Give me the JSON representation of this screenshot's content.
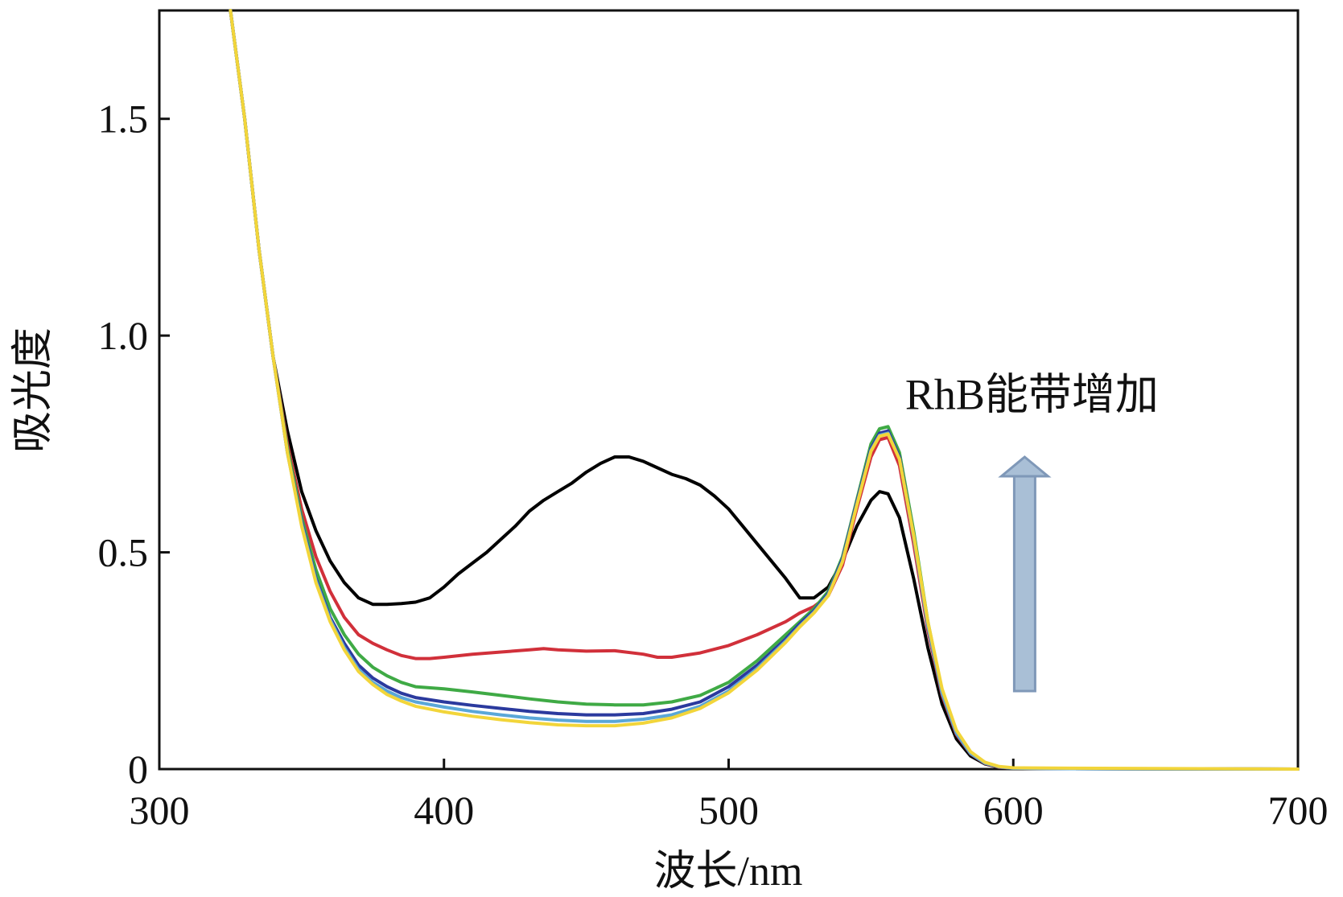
{
  "chart_data": {
    "type": "line",
    "title": "",
    "xlabel": "波长/nm",
    "ylabel": "吸光度",
    "xlim": [
      300,
      700
    ],
    "ylim": [
      0,
      1.75
    ],
    "xticks": [
      300,
      400,
      500,
      600,
      700
    ],
    "xtick_labels": [
      "300",
      "400",
      "500",
      "600",
      "700"
    ],
    "yticks": [
      0,
      0.5,
      1.0,
      1.5
    ],
    "ytick_labels": [
      "0",
      "0.5",
      "1.0",
      "1.5"
    ],
    "grid": false,
    "legend": "none",
    "annotation": {
      "text": "RhB能带增加",
      "arrow_direction": "up",
      "arrow_x": 604,
      "arrow_y_from": 0.18,
      "arrow_y_to": 0.72,
      "text_x": 562,
      "text_y": 0.83
    },
    "series": [
      {
        "color": "#000000",
        "points": [
          [
            325,
            1.75
          ],
          [
            330,
            1.5
          ],
          [
            335,
            1.2
          ],
          [
            340,
            0.95
          ],
          [
            345,
            0.78
          ],
          [
            350,
            0.64
          ],
          [
            355,
            0.55
          ],
          [
            360,
            0.48
          ],
          [
            365,
            0.43
          ],
          [
            370,
            0.395
          ],
          [
            375,
            0.38
          ],
          [
            380,
            0.38
          ],
          [
            385,
            0.382
          ],
          [
            390,
            0.385
          ],
          [
            395,
            0.395
          ],
          [
            400,
            0.42
          ],
          [
            405,
            0.45
          ],
          [
            410,
            0.475
          ],
          [
            415,
            0.5
          ],
          [
            420,
            0.53
          ],
          [
            425,
            0.56
          ],
          [
            430,
            0.595
          ],
          [
            435,
            0.62
          ],
          [
            440,
            0.64
          ],
          [
            445,
            0.66
          ],
          [
            450,
            0.685
          ],
          [
            455,
            0.705
          ],
          [
            460,
            0.72
          ],
          [
            465,
            0.72
          ],
          [
            470,
            0.71
          ],
          [
            475,
            0.695
          ],
          [
            480,
            0.68
          ],
          [
            485,
            0.67
          ],
          [
            490,
            0.655
          ],
          [
            495,
            0.63
          ],
          [
            500,
            0.6
          ],
          [
            505,
            0.56
          ],
          [
            510,
            0.52
          ],
          [
            515,
            0.48
          ],
          [
            520,
            0.44
          ],
          [
            525,
            0.395
          ],
          [
            530,
            0.395
          ],
          [
            535,
            0.42
          ],
          [
            540,
            0.48
          ],
          [
            545,
            0.56
          ],
          [
            550,
            0.62
          ],
          [
            553,
            0.64
          ],
          [
            556,
            0.635
          ],
          [
            560,
            0.58
          ],
          [
            565,
            0.44
          ],
          [
            570,
            0.28
          ],
          [
            575,
            0.15
          ],
          [
            580,
            0.07
          ],
          [
            585,
            0.03
          ],
          [
            590,
            0.012
          ],
          [
            595,
            0.004
          ],
          [
            600,
            0.002
          ],
          [
            620,
            0.001
          ],
          [
            700,
            0.0
          ]
        ]
      },
      {
        "color": "#d1303a",
        "points": [
          [
            325,
            1.75
          ],
          [
            330,
            1.5
          ],
          [
            335,
            1.2
          ],
          [
            340,
            0.95
          ],
          [
            345,
            0.75
          ],
          [
            350,
            0.6
          ],
          [
            355,
            0.49
          ],
          [
            360,
            0.41
          ],
          [
            365,
            0.35
          ],
          [
            370,
            0.31
          ],
          [
            375,
            0.29
          ],
          [
            380,
            0.275
          ],
          [
            385,
            0.262
          ],
          [
            390,
            0.255
          ],
          [
            395,
            0.255
          ],
          [
            400,
            0.258
          ],
          [
            410,
            0.265
          ],
          [
            420,
            0.27
          ],
          [
            430,
            0.275
          ],
          [
            435,
            0.278
          ],
          [
            440,
            0.275
          ],
          [
            450,
            0.272
          ],
          [
            460,
            0.273
          ],
          [
            470,
            0.265
          ],
          [
            475,
            0.258
          ],
          [
            480,
            0.258
          ],
          [
            490,
            0.268
          ],
          [
            500,
            0.285
          ],
          [
            510,
            0.31
          ],
          [
            520,
            0.34
          ],
          [
            525,
            0.36
          ],
          [
            530,
            0.375
          ],
          [
            535,
            0.4
          ],
          [
            540,
            0.47
          ],
          [
            545,
            0.6
          ],
          [
            550,
            0.72
          ],
          [
            553,
            0.76
          ],
          [
            556,
            0.765
          ],
          [
            560,
            0.7
          ],
          [
            565,
            0.52
          ],
          [
            570,
            0.32
          ],
          [
            575,
            0.17
          ],
          [
            580,
            0.08
          ],
          [
            585,
            0.035
          ],
          [
            590,
            0.013
          ],
          [
            595,
            0.004
          ],
          [
            600,
            0.002
          ],
          [
            620,
            0.001
          ],
          [
            700,
            0.0
          ]
        ]
      },
      {
        "color": "#3faa45",
        "points": [
          [
            325,
            1.75
          ],
          [
            330,
            1.5
          ],
          [
            335,
            1.2
          ],
          [
            340,
            0.95
          ],
          [
            345,
            0.74
          ],
          [
            350,
            0.58
          ],
          [
            355,
            0.46
          ],
          [
            360,
            0.37
          ],
          [
            365,
            0.31
          ],
          [
            370,
            0.265
          ],
          [
            375,
            0.235
          ],
          [
            380,
            0.215
          ],
          [
            385,
            0.2
          ],
          [
            390,
            0.19
          ],
          [
            400,
            0.185
          ],
          [
            410,
            0.178
          ],
          [
            420,
            0.17
          ],
          [
            430,
            0.162
          ],
          [
            440,
            0.155
          ],
          [
            450,
            0.15
          ],
          [
            460,
            0.148
          ],
          [
            470,
            0.148
          ],
          [
            480,
            0.155
          ],
          [
            490,
            0.17
          ],
          [
            500,
            0.2
          ],
          [
            510,
            0.25
          ],
          [
            520,
            0.31
          ],
          [
            525,
            0.34
          ],
          [
            530,
            0.37
          ],
          [
            535,
            0.41
          ],
          [
            540,
            0.49
          ],
          [
            545,
            0.62
          ],
          [
            550,
            0.75
          ],
          [
            553,
            0.785
          ],
          [
            556,
            0.79
          ],
          [
            560,
            0.73
          ],
          [
            565,
            0.55
          ],
          [
            570,
            0.34
          ],
          [
            575,
            0.18
          ],
          [
            580,
            0.085
          ],
          [
            585,
            0.037
          ],
          [
            590,
            0.014
          ],
          [
            595,
            0.005
          ],
          [
            600,
            0.002
          ],
          [
            620,
            0.001
          ],
          [
            700,
            0.0
          ]
        ]
      },
      {
        "color": "#2b3a9e",
        "points": [
          [
            325,
            1.75
          ],
          [
            330,
            1.5
          ],
          [
            335,
            1.2
          ],
          [
            340,
            0.95
          ],
          [
            345,
            0.73
          ],
          [
            350,
            0.57
          ],
          [
            355,
            0.44
          ],
          [
            360,
            0.35
          ],
          [
            365,
            0.29
          ],
          [
            370,
            0.24
          ],
          [
            375,
            0.21
          ],
          [
            380,
            0.19
          ],
          [
            385,
            0.175
          ],
          [
            390,
            0.165
          ],
          [
            400,
            0.155
          ],
          [
            410,
            0.147
          ],
          [
            420,
            0.14
          ],
          [
            430,
            0.133
          ],
          [
            440,
            0.128
          ],
          [
            450,
            0.125
          ],
          [
            460,
            0.125
          ],
          [
            470,
            0.128
          ],
          [
            480,
            0.138
          ],
          [
            490,
            0.155
          ],
          [
            500,
            0.19
          ],
          [
            510,
            0.24
          ],
          [
            520,
            0.3
          ],
          [
            525,
            0.335
          ],
          [
            530,
            0.365
          ],
          [
            535,
            0.405
          ],
          [
            540,
            0.485
          ],
          [
            545,
            0.615
          ],
          [
            550,
            0.74
          ],
          [
            553,
            0.775
          ],
          [
            556,
            0.78
          ],
          [
            560,
            0.72
          ],
          [
            565,
            0.54
          ],
          [
            570,
            0.33
          ],
          [
            575,
            0.175
          ],
          [
            580,
            0.083
          ],
          [
            585,
            0.036
          ],
          [
            590,
            0.014
          ],
          [
            595,
            0.005
          ],
          [
            600,
            0.002
          ],
          [
            620,
            0.001
          ],
          [
            700,
            0.0
          ]
        ]
      },
      {
        "color": "#5aa7d8",
        "points": [
          [
            325,
            1.75
          ],
          [
            330,
            1.5
          ],
          [
            335,
            1.2
          ],
          [
            340,
            0.95
          ],
          [
            345,
            0.73
          ],
          [
            350,
            0.565
          ],
          [
            355,
            0.435
          ],
          [
            360,
            0.345
          ],
          [
            365,
            0.28
          ],
          [
            370,
            0.23
          ],
          [
            375,
            0.2
          ],
          [
            380,
            0.18
          ],
          [
            385,
            0.165
          ],
          [
            390,
            0.155
          ],
          [
            400,
            0.143
          ],
          [
            410,
            0.133
          ],
          [
            420,
            0.125
          ],
          [
            430,
            0.118
          ],
          [
            440,
            0.113
          ],
          [
            450,
            0.11
          ],
          [
            460,
            0.11
          ],
          [
            470,
            0.115
          ],
          [
            480,
            0.125
          ],
          [
            490,
            0.145
          ],
          [
            500,
            0.18
          ],
          [
            510,
            0.232
          ],
          [
            520,
            0.295
          ],
          [
            525,
            0.33
          ],
          [
            530,
            0.362
          ],
          [
            535,
            0.402
          ],
          [
            540,
            0.48
          ],
          [
            545,
            0.61
          ],
          [
            550,
            0.735
          ],
          [
            553,
            0.77
          ],
          [
            556,
            0.775
          ],
          [
            560,
            0.715
          ],
          [
            565,
            0.535
          ],
          [
            570,
            0.33
          ],
          [
            575,
            0.175
          ],
          [
            580,
            0.083
          ],
          [
            585,
            0.036
          ],
          [
            590,
            0.014
          ],
          [
            595,
            0.005
          ],
          [
            600,
            0.002
          ],
          [
            620,
            0.001
          ],
          [
            700,
            0.0
          ]
        ]
      },
      {
        "color": "#f2d53a",
        "points": [
          [
            325,
            1.75
          ],
          [
            330,
            1.5
          ],
          [
            335,
            1.2
          ],
          [
            340,
            0.95
          ],
          [
            345,
            0.73
          ],
          [
            350,
            0.56
          ],
          [
            355,
            0.43
          ],
          [
            360,
            0.34
          ],
          [
            365,
            0.275
          ],
          [
            370,
            0.225
          ],
          [
            375,
            0.195
          ],
          [
            380,
            0.172
          ],
          [
            385,
            0.157
          ],
          [
            390,
            0.145
          ],
          [
            400,
            0.132
          ],
          [
            410,
            0.122
          ],
          [
            420,
            0.114
          ],
          [
            430,
            0.107
          ],
          [
            440,
            0.102
          ],
          [
            450,
            0.1
          ],
          [
            460,
            0.1
          ],
          [
            470,
            0.106
          ],
          [
            480,
            0.118
          ],
          [
            490,
            0.14
          ],
          [
            500,
            0.176
          ],
          [
            510,
            0.228
          ],
          [
            520,
            0.292
          ],
          [
            525,
            0.328
          ],
          [
            530,
            0.36
          ],
          [
            535,
            0.4
          ],
          [
            540,
            0.478
          ],
          [
            545,
            0.608
          ],
          [
            550,
            0.733
          ],
          [
            553,
            0.768
          ],
          [
            556,
            0.773
          ],
          [
            560,
            0.715
          ],
          [
            565,
            0.54
          ],
          [
            570,
            0.34
          ],
          [
            575,
            0.185
          ],
          [
            580,
            0.09
          ],
          [
            585,
            0.04
          ],
          [
            590,
            0.016
          ],
          [
            595,
            0.006
          ],
          [
            600,
            0.003
          ],
          [
            620,
            0.002
          ],
          [
            700,
            0.0
          ]
        ]
      }
    ]
  }
}
